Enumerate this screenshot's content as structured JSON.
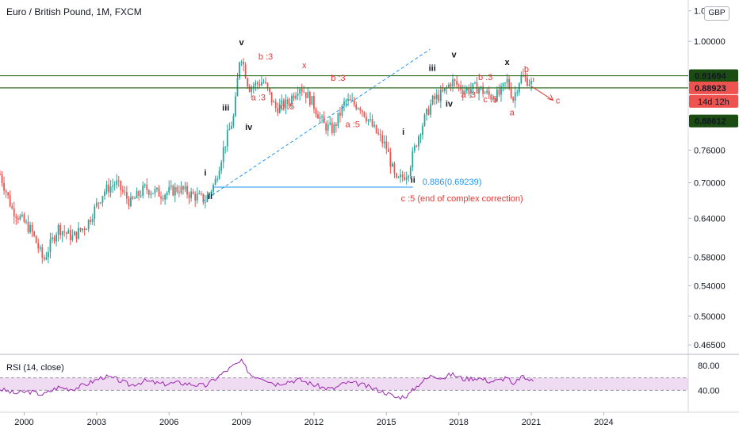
{
  "header": {
    "title": "Euro / British Pound, 1M, FXCM"
  },
  "currency": "GBP",
  "rsi_title": "RSI (14, close)",
  "colors": {
    "up": "#26a69a",
    "down": "#ef5350",
    "wave_red": "#e53935",
    "wave_black": "#131722",
    "hline": "#2e6b1f",
    "fib": "#2196f3",
    "rsi": "#9c27b0",
    "rsi_band": "#e1bee7"
  },
  "chart_data": {
    "type": "candlestick",
    "title": "Euro / British Pound, 1M, FXCM",
    "x_ticks": [
      "2000",
      "2003",
      "2006",
      "2009",
      "2012",
      "2015",
      "2018",
      "2021",
      "2024"
    ],
    "y_ticks": [
      "0.46500",
      "0.50000",
      "0.54000",
      "0.58000",
      "0.64000",
      "0.70000",
      "0.76000",
      "1.00000",
      "1.08000"
    ],
    "price_scale": "log",
    "ylim": [
      0.455,
      1.11
    ],
    "xlim": [
      1999.0,
      2027.5
    ],
    "path": [
      [
        1999.0,
        0.715
      ],
      [
        1999.5,
        0.655
      ],
      [
        2000.3,
        0.62
      ],
      [
        2000.8,
        0.575
      ],
      [
        2001.4,
        0.625
      ],
      [
        2002.0,
        0.61
      ],
      [
        2002.6,
        0.63
      ],
      [
        2003.3,
        0.685
      ],
      [
        2003.8,
        0.7
      ],
      [
        2004.4,
        0.665
      ],
      [
        2005.0,
        0.69
      ],
      [
        2005.7,
        0.68
      ],
      [
        2006.4,
        0.69
      ],
      [
        2006.9,
        0.68
      ],
      [
        2007.5,
        0.67
      ],
      [
        2007.9,
        0.7
      ],
      [
        2008.3,
        0.77
      ],
      [
        2008.7,
        0.83
      ],
      [
        2008.95,
        0.975
      ],
      [
        2009.3,
        0.89
      ],
      [
        2009.9,
        0.905
      ],
      [
        2010.4,
        0.845
      ],
      [
        2010.9,
        0.855
      ],
      [
        2011.4,
        0.895
      ],
      [
        2011.9,
        0.86
      ],
      [
        2012.4,
        0.81
      ],
      [
        2012.8,
        0.8
      ],
      [
        2013.3,
        0.86
      ],
      [
        2013.9,
        0.85
      ],
      [
        2014.5,
        0.8
      ],
      [
        2015.0,
        0.765
      ],
      [
        2015.4,
        0.7
      ],
      [
        2015.9,
        0.72
      ],
      [
        2016.4,
        0.8
      ],
      [
        2016.9,
        0.86
      ],
      [
        2017.4,
        0.88
      ],
      [
        2017.7,
        0.905
      ],
      [
        2018.2,
        0.885
      ],
      [
        2018.8,
        0.89
      ],
      [
        2019.3,
        0.87
      ],
      [
        2019.7,
        0.875
      ],
      [
        2020.0,
        0.905
      ],
      [
        2020.25,
        0.865
      ],
      [
        2020.55,
        0.915
      ],
      [
        2020.9,
        0.905
      ],
      [
        2021.1,
        0.893
      ]
    ],
    "h_lines": [
      {
        "value": 0.91694,
        "label": "0.91694"
      },
      {
        "value": 0.88923,
        "label": "0.88923"
      },
      {
        "value": 0.88612,
        "label": "0.88612"
      }
    ],
    "countdown": "14d 12h",
    "fib_line": {
      "label": "0.886(0.69239)",
      "value": 0.69239,
      "x_start": 2007.8,
      "x_end": 2016.1
    },
    "trend_line": {
      "x1": 2007.4,
      "y1": 0.668,
      "x2": 2016.8,
      "y2": 0.98
    },
    "wave_labels": [
      {
        "text": "i",
        "x": 2007.5,
        "y": 0.713,
        "color": "black"
      },
      {
        "text": "ii",
        "x": 2007.7,
        "y": 0.672,
        "color": "black"
      },
      {
        "text": "iii",
        "x": 2008.35,
        "y": 0.84,
        "color": "black"
      },
      {
        "text": "iv",
        "x": 2009.3,
        "y": 0.8,
        "color": "black"
      },
      {
        "text": "v",
        "x": 2009.0,
        "y": 0.99,
        "color": "black"
      },
      {
        "text": "b :3",
        "x": 2010.0,
        "y": 0.955,
        "color": "red"
      },
      {
        "text": "x",
        "x": 2011.6,
        "y": 0.935,
        "color": "red"
      },
      {
        "text": "a :3",
        "x": 2009.7,
        "y": 0.862,
        "color": "red"
      },
      {
        "text": "c :5",
        "x": 2010.9,
        "y": 0.842,
        "color": "red"
      },
      {
        "text": "b :3",
        "x": 2013.0,
        "y": 0.905,
        "color": "red"
      },
      {
        "text": "a :5",
        "x": 2013.6,
        "y": 0.805,
        "color": "red"
      },
      {
        "text": "i",
        "x": 2015.7,
        "y": 0.79,
        "color": "black"
      },
      {
        "text": "ii",
        "x": 2016.1,
        "y": 0.7,
        "color": "black"
      },
      {
        "text": "iii",
        "x": 2016.9,
        "y": 0.928,
        "color": "black"
      },
      {
        "text": "iv",
        "x": 2017.6,
        "y": 0.848,
        "color": "black"
      },
      {
        "text": "v",
        "x": 2017.8,
        "y": 0.96,
        "color": "black"
      },
      {
        "text": "b :3",
        "x": 2019.1,
        "y": 0.907,
        "color": "red"
      },
      {
        "text": "a :3",
        "x": 2018.4,
        "y": 0.868,
        "color": "red"
      },
      {
        "text": "c :5",
        "x": 2019.3,
        "y": 0.858,
        "color": "red"
      },
      {
        "text": "x",
        "x": 2020.0,
        "y": 0.942,
        "color": "black"
      },
      {
        "text": "a",
        "x": 2020.2,
        "y": 0.83,
        "color": "red"
      },
      {
        "text": "b",
        "x": 2020.8,
        "y": 0.925,
        "color": "red"
      },
      {
        "text": "c",
        "x": 2022.1,
        "y": 0.855,
        "color": "red"
      }
    ],
    "note": "c :5 (end of complex correction)",
    "projection": {
      "x1": 2021.0,
      "y1": 0.893,
      "x2": 2021.9,
      "y2": 0.862
    },
    "rsi": {
      "y_ticks": [
        "80.00",
        "40.00"
      ],
      "ylim": [
        15,
        95
      ],
      "band": [
        40,
        60
      ],
      "path": [
        [
          1999.0,
          42
        ],
        [
          1999.6,
          35
        ],
        [
          2000.2,
          38
        ],
        [
          2000.8,
          33
        ],
        [
          2001.4,
          45
        ],
        [
          2002.0,
          42
        ],
        [
          2002.6,
          50
        ],
        [
          2003.3,
          62
        ],
        [
          2003.8,
          58
        ],
        [
          2004.4,
          48
        ],
        [
          2005.0,
          55
        ],
        [
          2005.7,
          50
        ],
        [
          2006.4,
          52
        ],
        [
          2006.9,
          50
        ],
        [
          2007.5,
          47
        ],
        [
          2007.9,
          58
        ],
        [
          2008.4,
          72
        ],
        [
          2008.7,
          80
        ],
        [
          2009.0,
          86
        ],
        [
          2009.4,
          64
        ],
        [
          2009.9,
          60
        ],
        [
          2010.4,
          50
        ],
        [
          2010.9,
          54
        ],
        [
          2011.4,
          57
        ],
        [
          2011.9,
          50
        ],
        [
          2012.4,
          44
        ],
        [
          2012.8,
          42
        ],
        [
          2013.3,
          52
        ],
        [
          2013.9,
          50
        ],
        [
          2014.5,
          42
        ],
        [
          2015.0,
          36
        ],
        [
          2015.4,
          28
        ],
        [
          2015.9,
          32
        ],
        [
          2016.4,
          52
        ],
        [
          2016.9,
          64
        ],
        [
          2017.4,
          60
        ],
        [
          2017.7,
          66
        ],
        [
          2018.2,
          58
        ],
        [
          2018.8,
          60
        ],
        [
          2019.3,
          54
        ],
        [
          2019.7,
          56
        ],
        [
          2020.0,
          62
        ],
        [
          2020.25,
          46
        ],
        [
          2020.55,
          62
        ],
        [
          2020.9,
          57
        ],
        [
          2021.1,
          54
        ]
      ]
    }
  }
}
